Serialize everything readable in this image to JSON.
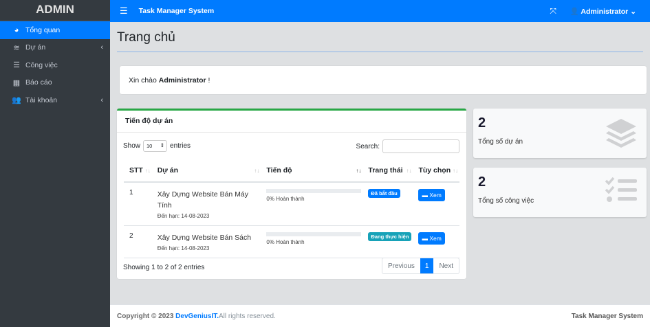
{
  "sidebar": {
    "brand": "ADMIN",
    "items": [
      {
        "label": "Tổng quan",
        "icon": "dashboard-icon",
        "active": true
      },
      {
        "label": "Dự án",
        "icon": "layers-icon",
        "has_submenu": true
      },
      {
        "label": "Công việc",
        "icon": "tasks-icon"
      },
      {
        "label": "Báo cáo",
        "icon": "table-icon"
      },
      {
        "label": "Tài khoản",
        "icon": "users-icon",
        "has_submenu": true
      }
    ]
  },
  "topbar": {
    "title": "Task Manager System",
    "user": "Administrator"
  },
  "page": {
    "title": "Trang chủ",
    "welcome_prefix": "Xin chào",
    "welcome_name": "Administrator",
    "welcome_suffix": " !"
  },
  "project_card": {
    "title": "Tiến độ dự án",
    "show_label": "Show",
    "entries_value": "10",
    "entries_label": "entries",
    "search_label": "Search:",
    "search_value": "",
    "columns": [
      "STT",
      "Dự án",
      "Tiến độ",
      "Trang thái",
      "Tùy chọn"
    ],
    "rows": [
      {
        "stt": "1",
        "name": "Xây Dựng Website Bán Máy Tính",
        "due": "Đến hạn: 14-08-2023",
        "progress": 0,
        "progress_text": "0% Hoàn thành",
        "status": "Đã bắt đầu",
        "status_color": "#007bff",
        "action": "Xem"
      },
      {
        "stt": "2",
        "name": "Xây Dựng Website Bán Sách",
        "due": "Đến hạn: 14-08-2023",
        "progress": 0,
        "progress_text": "0% Hoàn thành",
        "status": "Đang thực hiện",
        "status_color": "#17a2b8",
        "action": "Xem"
      }
    ],
    "info": "Showing 1 to 2 of 2 entries",
    "prev": "Previous",
    "page": "1",
    "next": "Next"
  },
  "stats": [
    {
      "value": "2",
      "label": "Tổng số dự án",
      "icon": "layers-icon"
    },
    {
      "value": "2",
      "label": "Tổng số công việc",
      "icon": "tasks-icon"
    }
  ],
  "footer": {
    "copyright": "Copyright © 2023",
    "brand": "DevGeniusIT.",
    "rights": " All rights reserved.",
    "right": "Task Manager System"
  }
}
